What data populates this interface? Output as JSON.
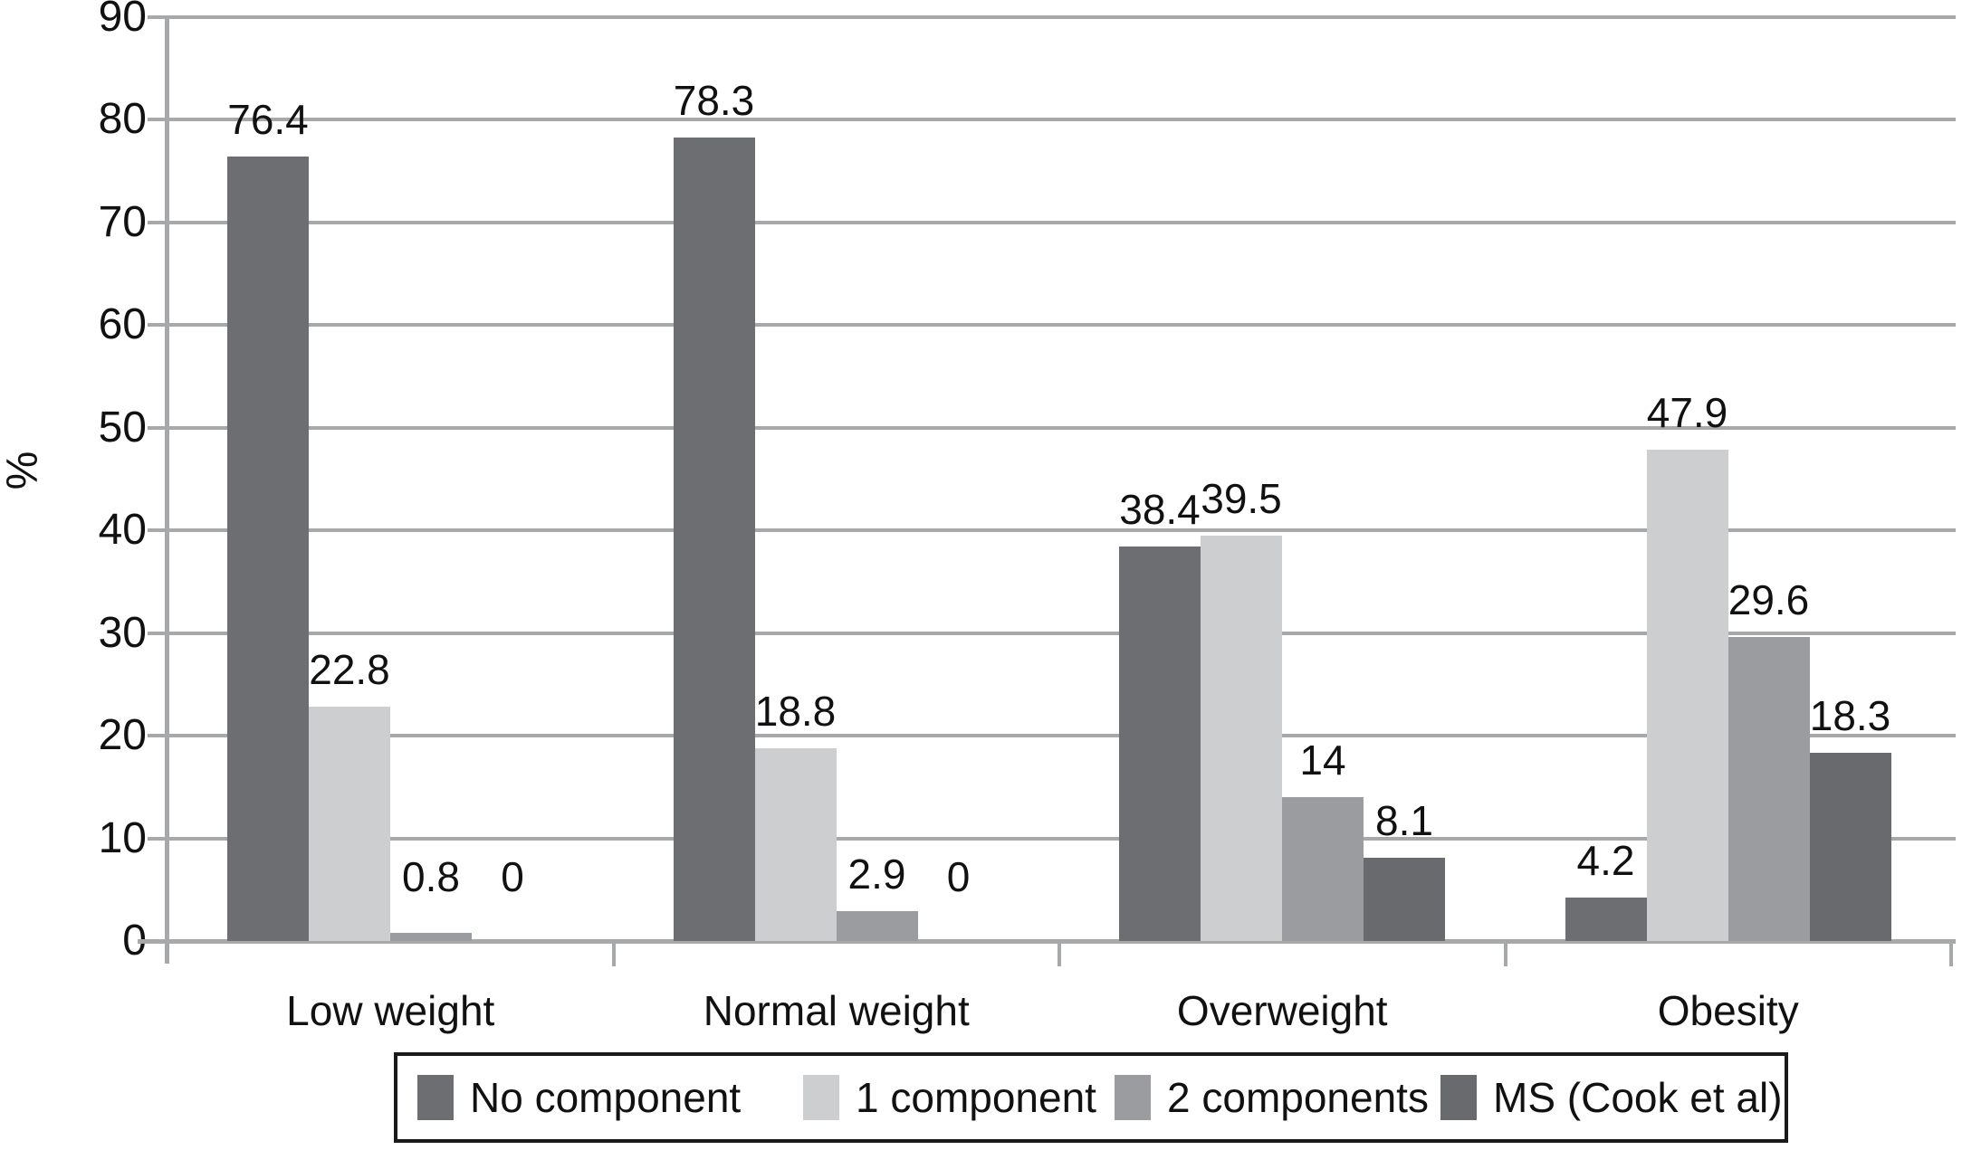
{
  "chart_data": {
    "type": "bar",
    "title": "",
    "xlabel": "",
    "ylabel": "%",
    "ylim": [
      0,
      90
    ],
    "y_ticks": [
      "0",
      "10",
      "20",
      "30",
      "40",
      "50",
      "60",
      "70",
      "80",
      "90"
    ],
    "grid": true,
    "legend_position": "bottom",
    "categories": [
      "Low weight",
      "Normal weight",
      "Overweight",
      "Obesity"
    ],
    "series": [
      {
        "name": "No component",
        "color": "#6d6e71",
        "values": [
          76.4,
          78.3,
          38.4,
          4.2
        ]
      },
      {
        "name": "1 component",
        "color": "#cdced0",
        "values": [
          22.8,
          18.8,
          39.5,
          47.9
        ]
      },
      {
        "name": "2 components",
        "color": "#9b9c9f",
        "values": [
          0.8,
          2.9,
          14,
          29.6
        ]
      },
      {
        "name": "MS (Cook et al)",
        "color": "#696a6d",
        "values": [
          0,
          0,
          8.1,
          18.3
        ]
      }
    ],
    "value_labels": [
      [
        "76.4",
        "22.8",
        "0.8",
        "0"
      ],
      [
        "78.3",
        "18.8",
        "2.9",
        "0"
      ],
      [
        "38.4",
        "39.5",
        "14",
        "8.1"
      ],
      [
        "4.2",
        "47.9",
        "29.6",
        "18.3"
      ]
    ],
    "colors": {
      "grid": "#a7a8aa",
      "text": "#111111",
      "legend_border": "#1a1a1a"
    }
  }
}
